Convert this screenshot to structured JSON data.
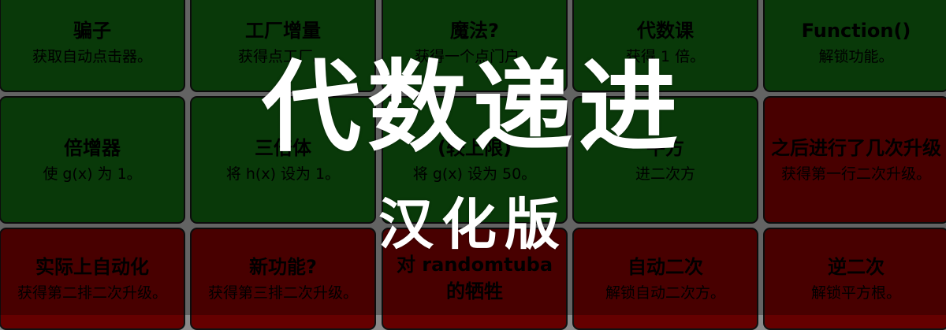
{
  "banner": {
    "title": "代数递进",
    "subtitle": "汉化版"
  },
  "colors": {
    "bought": "#0d4f0d",
    "locked": "#650000",
    "background": "#8a8a8a"
  },
  "rows": [
    [
      {
        "title": "骗子",
        "desc": "获取自动点击器。",
        "state": "bought"
      },
      {
        "title": "工厂增量",
        "desc": "获得点工厂。",
        "state": "bought"
      },
      {
        "title": "魔法?",
        "desc": "获得一个点门户。",
        "state": "bought"
      },
      {
        "title": "代数课",
        "desc": "获得 1 倍。",
        "state": "bought"
      },
      {
        "title": "Function()",
        "desc": "解锁功能。",
        "state": "bought"
      }
    ],
    [
      {
        "title": "倍增器",
        "desc": "使 g(x) 为 1。",
        "state": "bought"
      },
      {
        "title": "三倍体",
        "desc": "将 h(x) 设为 1。",
        "state": "bought"
      },
      {
        "title": "(较上限)",
        "desc": "将 g(x) 设为 50。",
        "state": "bought"
      },
      {
        "title": "平方",
        "desc": "进二次方",
        "state": "bought"
      },
      {
        "title": "之后进行了几次升级",
        "desc": "获得第一行二次升级。",
        "state": "locked"
      }
    ],
    [
      {
        "title": "实际上自动化",
        "desc": "获得第二排二次升级。",
        "state": "locked"
      },
      {
        "title": "新功能?",
        "desc": "获得第三排二次升级。",
        "state": "locked"
      },
      {
        "title": "对 randomtuba 的牺牲",
        "desc": "",
        "state": "locked"
      },
      {
        "title": "自动二次",
        "desc": "解锁自动二次方。",
        "state": "locked"
      },
      {
        "title": "逆二次",
        "desc": "解锁平方根。",
        "state": "locked"
      }
    ]
  ]
}
